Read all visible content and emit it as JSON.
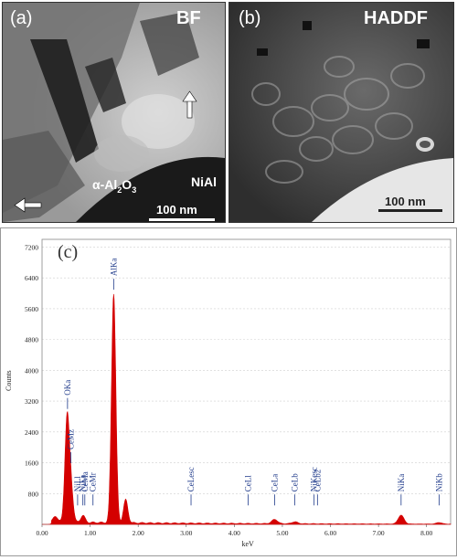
{
  "panel_a": {
    "label": "(a)",
    "mode": "BF",
    "phase_label_prefix": "α-Al",
    "phase_label_sub1": "2",
    "phase_label_mid": "O",
    "phase_label_sub2": "3",
    "substrate_label": "NiAl",
    "scale_bar": "100 nm"
  },
  "panel_b": {
    "label": "(b)",
    "mode": "HADDF",
    "scale_bar": "100 nm"
  },
  "panel_c": {
    "label": "(c)",
    "chart_data": {
      "type": "line",
      "xlabel": "keV",
      "ylabel": "Counts",
      "xlim": [
        0,
        8.5
      ],
      "ylim": [
        0,
        7400
      ],
      "xticks": [
        "0.00",
        "1.00",
        "2.00",
        "3.00",
        "4.00",
        "5.00",
        "6.00",
        "7.00",
        "8.00"
      ],
      "yticks": [
        "800",
        "1600",
        "2400",
        "3200",
        "4000",
        "4800",
        "5600",
        "6400",
        "7200"
      ],
      "yticks_values": [
        800,
        1600,
        2400,
        3200,
        4000,
        4800,
        5600,
        6400,
        7200
      ],
      "color": "#d40000",
      "peaks": [
        {
          "x": 0.28,
          "y": 160
        },
        {
          "x": 0.52,
          "y": 2650
        },
        {
          "x": 0.6,
          "y": 900
        },
        {
          "x": 0.85,
          "y": 180
        },
        {
          "x": 1.49,
          "y": 5950
        },
        {
          "x": 1.74,
          "y": 600
        },
        {
          "x": 4.84,
          "y": 110
        },
        {
          "x": 5.26,
          "y": 50
        },
        {
          "x": 7.47,
          "y": 230
        },
        {
          "x": 8.26,
          "y": 40
        }
      ],
      "background_level": 80,
      "annotations": [
        {
          "text": "OKa",
          "x": 0.53
        },
        {
          "text": "CeMz",
          "x": 0.6
        },
        {
          "text": "CeMa",
          "x": 0.89
        },
        {
          "text": "NiLl",
          "x": 0.74
        },
        {
          "text": "NiLa",
          "x": 0.85
        },
        {
          "text": "CeMr",
          "x": 1.06
        },
        {
          "text": "AlKa",
          "x": 1.49
        },
        {
          "text": "CeLesc",
          "x": 3.1
        },
        {
          "text": "CeLl",
          "x": 4.29
        },
        {
          "text": "CeLa",
          "x": 4.84
        },
        {
          "text": "CeLb",
          "x": 5.26
        },
        {
          "text": "NiKesc",
          "x": 5.66
        },
        {
          "text": "CeLb2",
          "x": 5.73
        },
        {
          "text": "NiKa",
          "x": 7.47
        },
        {
          "text": "NiKb",
          "x": 8.26
        }
      ]
    }
  }
}
